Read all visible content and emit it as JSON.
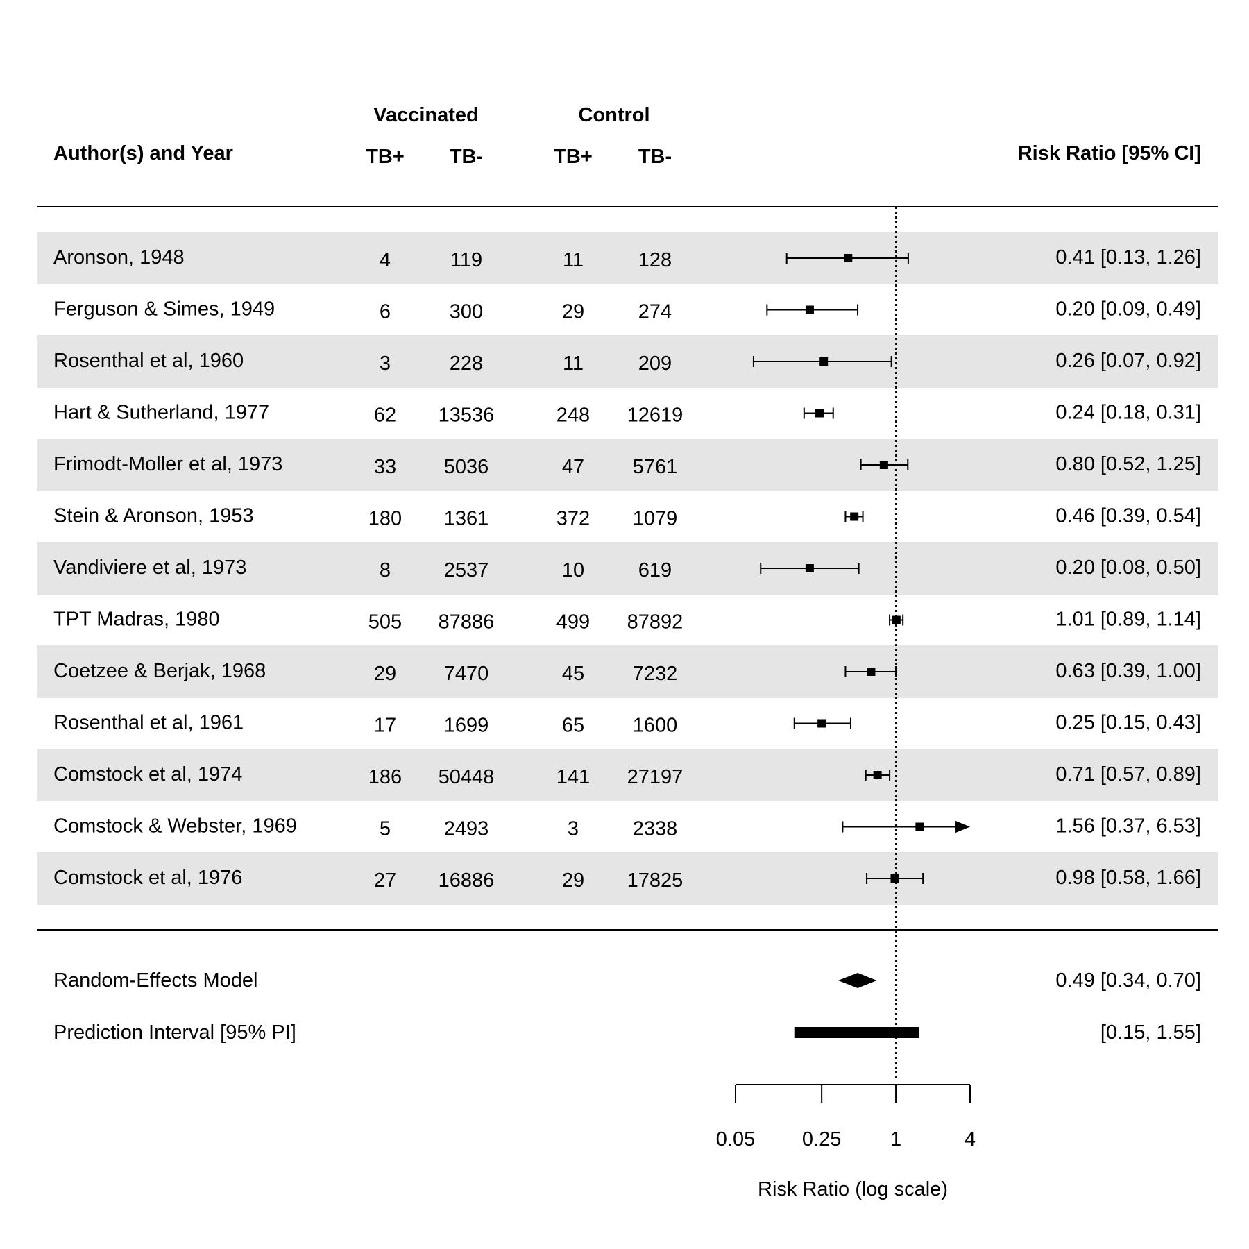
{
  "chart_data": {
    "type": "forest",
    "header": {
      "study_col": "Author(s) and Year",
      "group1": "Vaccinated",
      "group2": "Control",
      "sub1a": "TB+",
      "sub1b": "TB-",
      "sub2a": "TB+",
      "sub2b": "TB-",
      "effect_col": "Risk Ratio [95% CI]"
    },
    "xlabel": "Risk Ratio (log scale)",
    "scale": "log",
    "xlim": [
      0.05,
      4
    ],
    "ticks": [
      {
        "value": 0.05,
        "label": "0.05"
      },
      {
        "value": 0.25,
        "label": "0.25"
      },
      {
        "value": 1,
        "label": "1"
      },
      {
        "value": 4,
        "label": "4"
      }
    ],
    "reference_line": 1,
    "row_shading": true,
    "studies": [
      {
        "name": "Aronson, 1948",
        "tpos_v": "4",
        "tneg_v": "119",
        "tpos_c": "11",
        "tneg_c": "128",
        "rr": 0.41,
        "lo": 0.13,
        "hi": 1.26,
        "label": "0.41 [0.13, 1.26]"
      },
      {
        "name": "Ferguson & Simes, 1949",
        "tpos_v": "6",
        "tneg_v": "300",
        "tpos_c": "29",
        "tneg_c": "274",
        "rr": 0.2,
        "lo": 0.09,
        "hi": 0.49,
        "label": "0.20 [0.09, 0.49]"
      },
      {
        "name": "Rosenthal et al, 1960",
        "tpos_v": "3",
        "tneg_v": "228",
        "tpos_c": "11",
        "tneg_c": "209",
        "rr": 0.26,
        "lo": 0.07,
        "hi": 0.92,
        "label": "0.26 [0.07, 0.92]"
      },
      {
        "name": "Hart & Sutherland, 1977",
        "tpos_v": "62",
        "tneg_v": "13536",
        "tpos_c": "248",
        "tneg_c": "12619",
        "rr": 0.24,
        "lo": 0.18,
        "hi": 0.31,
        "label": "0.24 [0.18, 0.31]"
      },
      {
        "name": "Frimodt-Moller et al, 1973",
        "tpos_v": "33",
        "tneg_v": "5036",
        "tpos_c": "47",
        "tneg_c": "5761",
        "rr": 0.8,
        "lo": 0.52,
        "hi": 1.25,
        "label": "0.80 [0.52, 1.25]"
      },
      {
        "name": "Stein & Aronson, 1953",
        "tpos_v": "180",
        "tneg_v": "1361",
        "tpos_c": "372",
        "tneg_c": "1079",
        "rr": 0.46,
        "lo": 0.39,
        "hi": 0.54,
        "label": "0.46 [0.39, 0.54]"
      },
      {
        "name": "Vandiviere et al, 1973",
        "tpos_v": "8",
        "tneg_v": "2537",
        "tpos_c": "10",
        "tneg_c": "619",
        "rr": 0.2,
        "lo": 0.08,
        "hi": 0.5,
        "label": "0.20 [0.08, 0.50]"
      },
      {
        "name": "TPT Madras, 1980",
        "tpos_v": "505",
        "tneg_v": "87886",
        "tpos_c": "499",
        "tneg_c": "87892",
        "rr": 1.01,
        "lo": 0.89,
        "hi": 1.14,
        "label": "1.01 [0.89, 1.14]"
      },
      {
        "name": "Coetzee & Berjak, 1968",
        "tpos_v": "29",
        "tneg_v": "7470",
        "tpos_c": "45",
        "tneg_c": "7232",
        "rr": 0.63,
        "lo": 0.39,
        "hi": 1.0,
        "label": "0.63 [0.39, 1.00]"
      },
      {
        "name": "Rosenthal et al, 1961",
        "tpos_v": "17",
        "tneg_v": "1699",
        "tpos_c": "65",
        "tneg_c": "1600",
        "rr": 0.25,
        "lo": 0.15,
        "hi": 0.43,
        "label": "0.25 [0.15, 0.43]"
      },
      {
        "name": "Comstock et al, 1974",
        "tpos_v": "186",
        "tneg_v": "50448",
        "tpos_c": "141",
        "tneg_c": "27197",
        "rr": 0.71,
        "lo": 0.57,
        "hi": 0.89,
        "label": "0.71 [0.57, 0.89]"
      },
      {
        "name": "Comstock & Webster, 1969",
        "tpos_v": "5",
        "tneg_v": "2493",
        "tpos_c": "3",
        "tneg_c": "2338",
        "rr": 1.56,
        "lo": 0.37,
        "hi": 6.53,
        "label": "1.56 [0.37, 6.53]"
      },
      {
        "name": "Comstock et al, 1976",
        "tpos_v": "27",
        "tneg_v": "16886",
        "tpos_c": "29",
        "tneg_c": "17825",
        "rr": 0.98,
        "lo": 0.58,
        "hi": 1.66,
        "label": "0.98 [0.58, 1.66]"
      }
    ],
    "summary": {
      "name": "Random-Effects Model",
      "rr": 0.49,
      "lo": 0.34,
      "hi": 0.7,
      "label": "0.49 [0.34, 0.70]"
    },
    "prediction_interval": {
      "name": "Prediction Interval [95% PI]",
      "lo": 0.15,
      "hi": 1.55,
      "label": "[0.15, 1.55]"
    },
    "colors": {
      "stripe": "#e5e5e5",
      "ink": "#000000"
    }
  }
}
